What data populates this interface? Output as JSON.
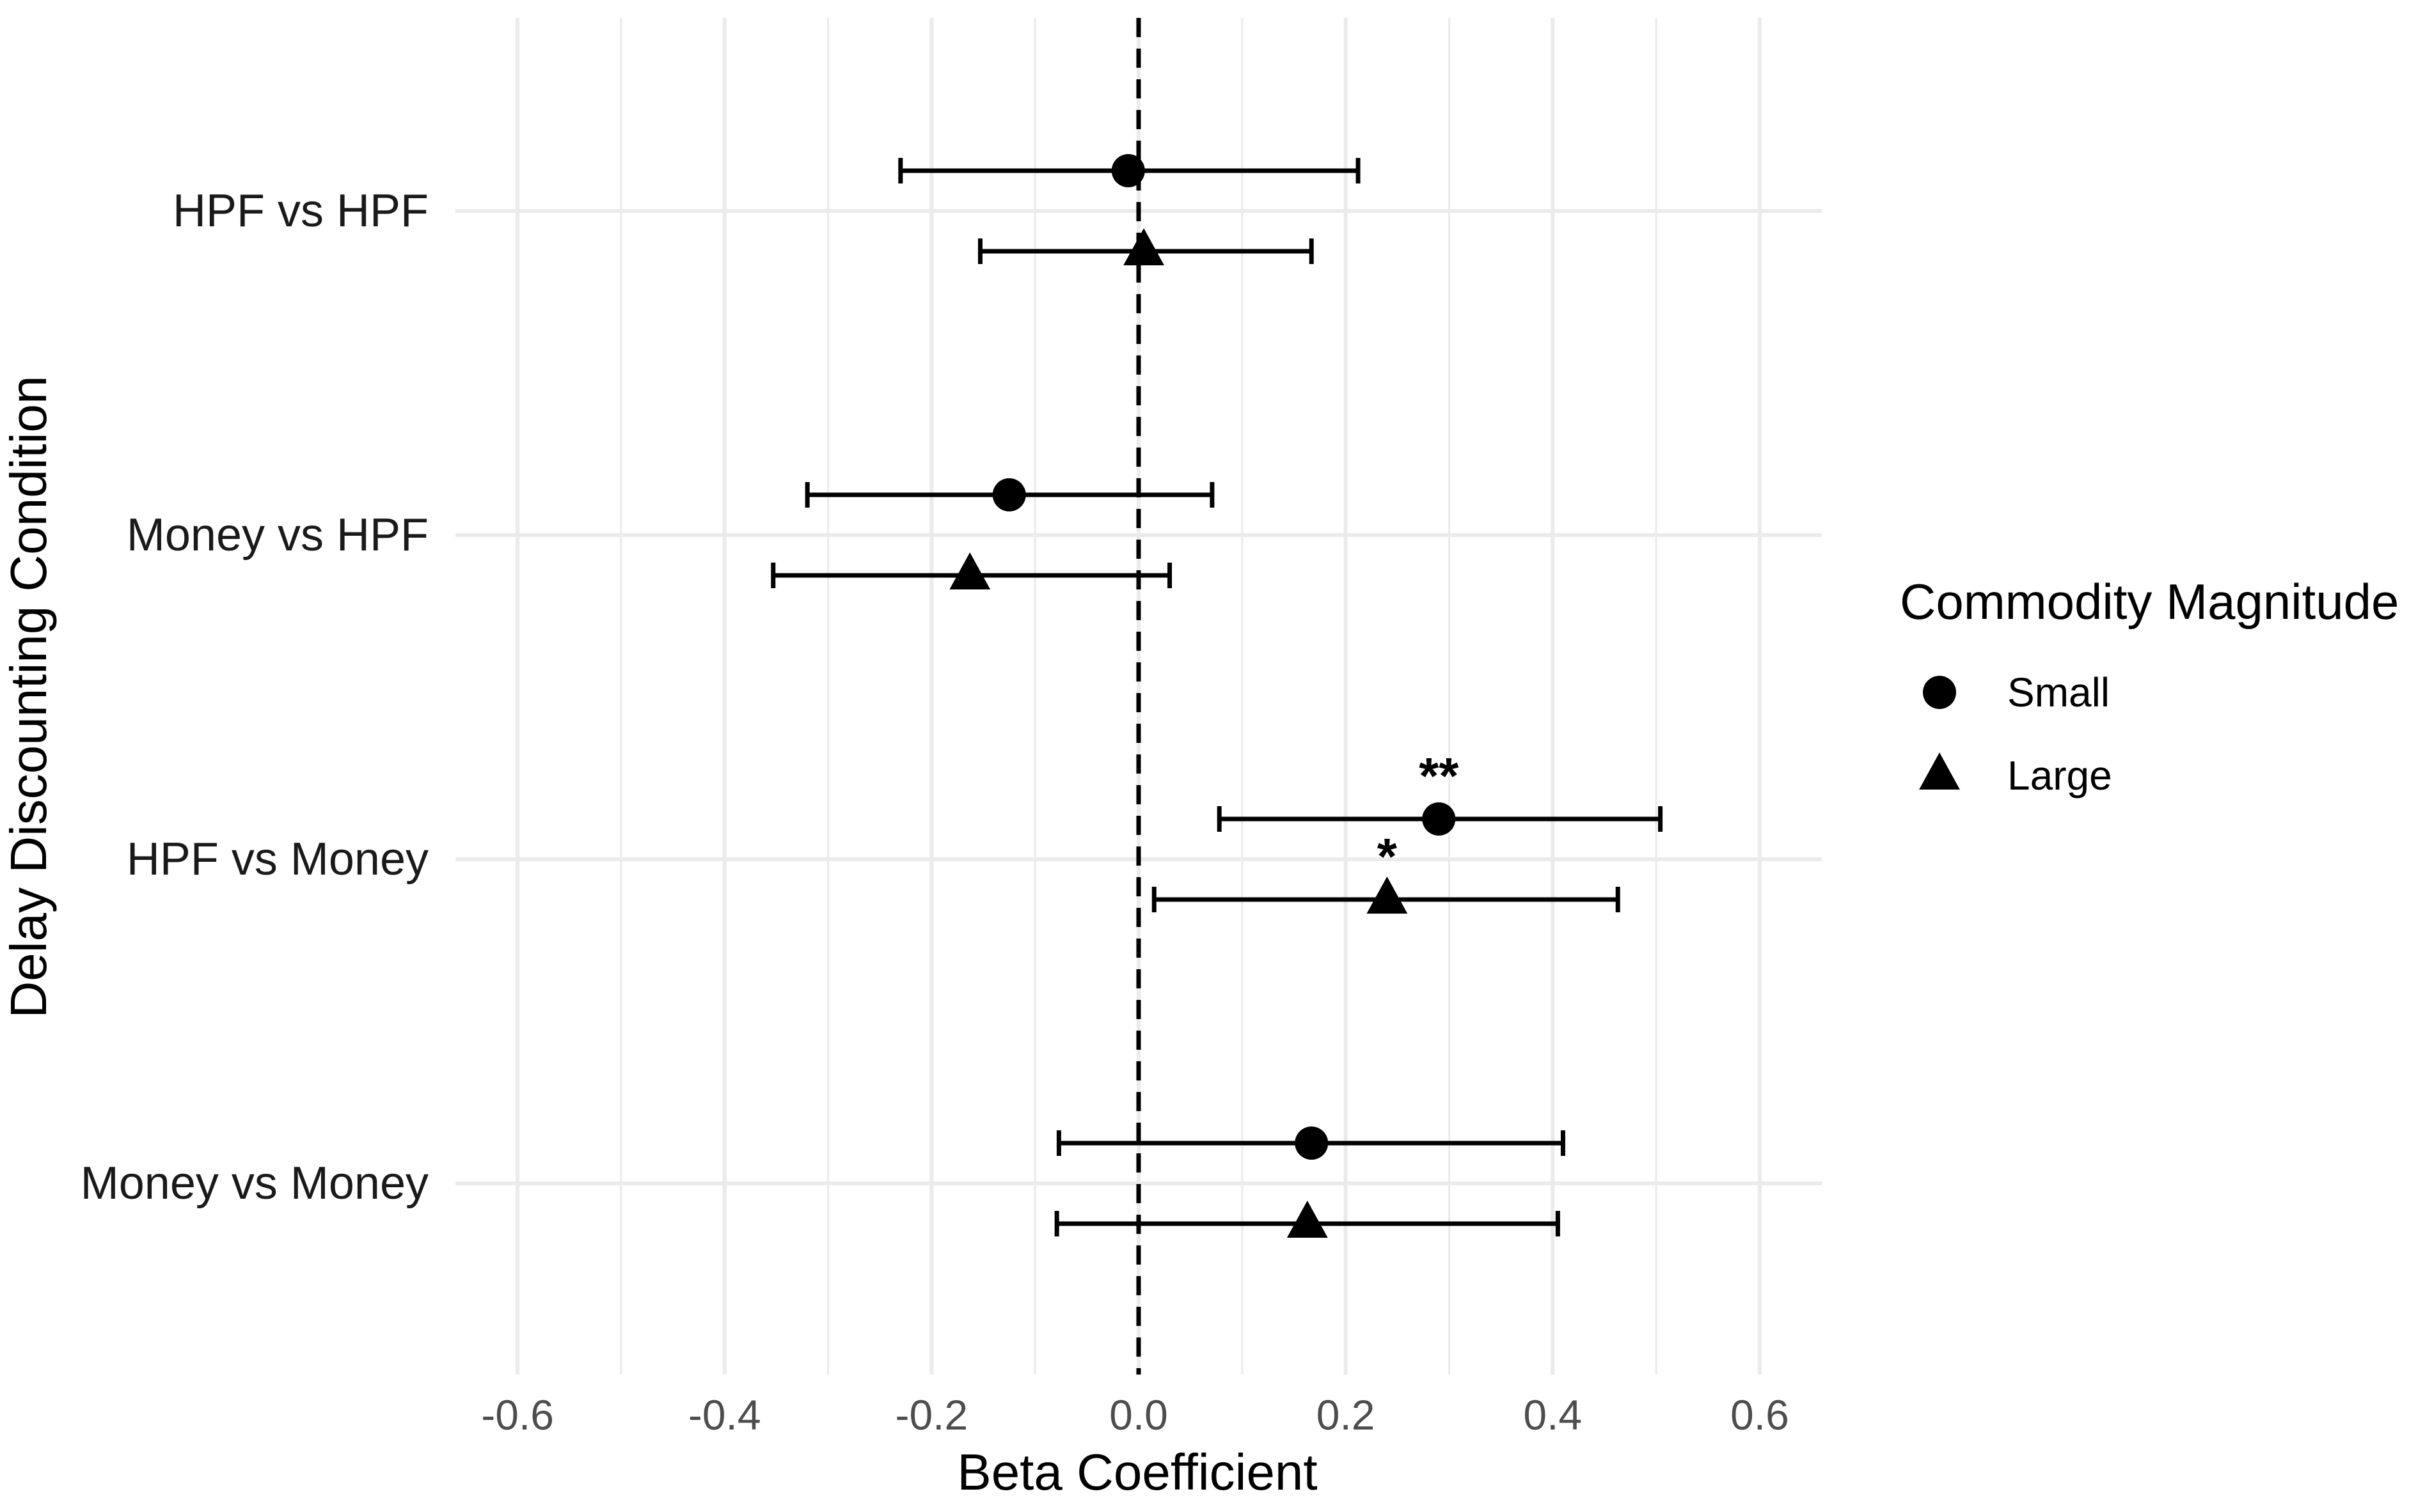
{
  "chart_data": {
    "type": "scatter",
    "subtype": "forest-plot",
    "xlabel": "Beta Coefficient",
    "ylabel": "Delay Discounting Condition",
    "xlim": [
      -0.66,
      0.66
    ],
    "x_ticks": [
      -0.6,
      -0.4,
      -0.2,
      0.0,
      0.2,
      0.4,
      0.6
    ],
    "x_tick_labels": [
      "-0.6",
      "-0.4",
      "-0.2",
      "0.0",
      "0.2",
      "0.4",
      "0.6"
    ],
    "reference_line": 0,
    "categories": [
      "HPF vs HPF",
      "Money vs HPF",
      "HPF vs Money",
      "Money vs Money"
    ],
    "legend": {
      "title": "Commodity Magnitude",
      "position": "right",
      "entries": [
        {
          "name": "Small",
          "shape": "circle"
        },
        {
          "name": "Large",
          "shape": "triangle"
        }
      ]
    },
    "series": [
      {
        "name": "Small",
        "shape": "circle",
        "estimates": [
          -0.01,
          -0.125,
          0.29,
          0.167
        ],
        "lower": [
          -0.23,
          -0.32,
          0.078,
          -0.077
        ],
        "upper": [
          0.212,
          0.071,
          0.504,
          0.41
        ],
        "significance": [
          "",
          "",
          "**",
          ""
        ]
      },
      {
        "name": "Large",
        "shape": "triangle",
        "estimates": [
          0.005,
          -0.163,
          0.24,
          0.163
        ],
        "lower": [
          -0.153,
          -0.353,
          0.015,
          -0.079
        ],
        "upper": [
          0.167,
          0.03,
          0.463,
          0.405
        ],
        "significance": [
          "",
          "",
          "*",
          ""
        ]
      }
    ]
  }
}
